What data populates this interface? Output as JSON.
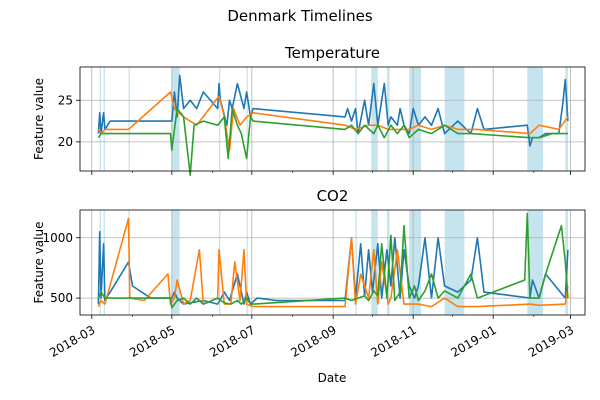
{
  "figure": {
    "title": "Denmark Timelines",
    "xlabel": "Date"
  },
  "colors": {
    "s1": "#1f77b4",
    "s2": "#ff7f0e",
    "s3": "#2ca02c",
    "band": "#add8e6"
  },
  "x_tick_labels": [
    "2018-03",
    "2018-05",
    "2018-07",
    "2018-09",
    "2018-11",
    "2019-01",
    "2019-03"
  ],
  "chart_data": [
    {
      "type": "line",
      "title": "Temperature",
      "ylabel": "Feature value",
      "xlim": [
        "2018-02-20",
        "2019-03-12"
      ],
      "ylim": [
        16.5,
        29
      ],
      "yticks": [
        20,
        25
      ],
      "grid": true,
      "shaded_periods": [
        [
          "2018-03-07",
          "2018-03-08"
        ],
        [
          "2018-03-10",
          "2018-03-11"
        ],
        [
          "2018-03-29",
          "2018-03-30"
        ],
        [
          "2018-05-01",
          "2018-05-07"
        ],
        [
          "2018-06-06",
          "2018-06-07"
        ],
        [
          "2018-06-27",
          "2018-06-28"
        ],
        [
          "2018-09-18",
          "2018-09-19"
        ],
        [
          "2018-09-30",
          "2018-10-05"
        ],
        [
          "2018-10-12",
          "2018-10-14"
        ],
        [
          "2018-10-29",
          "2018-11-07"
        ],
        [
          "2018-11-25",
          "2018-12-10"
        ],
        [
          "2019-01-27",
          "2019-02-08"
        ],
        [
          "2019-02-25",
          "2019-02-27"
        ]
      ],
      "series": [
        {
          "x": [
            "2018-03-06",
            "2018-03-07",
            "2018-03-08",
            "2018-03-10",
            "2018-03-11",
            "2018-03-15",
            "2018-03-29",
            "2018-03-30",
            "2018-05-01",
            "2018-05-03",
            "2018-05-05",
            "2018-05-07",
            "2018-05-10",
            "2018-05-15",
            "2018-05-20",
            "2018-05-25",
            "2018-06-05",
            "2018-06-06",
            "2018-06-07",
            "2018-06-12",
            "2018-06-14",
            "2018-06-16",
            "2018-06-20",
            "2018-06-25",
            "2018-06-27",
            "2018-06-28",
            "2018-06-30",
            "2018-07-02",
            "2018-09-10",
            "2018-09-12",
            "2018-09-15",
            "2018-09-18",
            "2018-09-20",
            "2018-09-25",
            "2018-09-28",
            "2018-10-02",
            "2018-10-05",
            "2018-10-10",
            "2018-10-13",
            "2018-10-15",
            "2018-10-20",
            "2018-10-22",
            "2018-10-25",
            "2018-10-29",
            "2018-11-01",
            "2018-11-05",
            "2018-11-10",
            "2018-11-15",
            "2018-11-20",
            "2018-11-25",
            "2018-12-05",
            "2018-12-15",
            "2018-12-20",
            "2018-12-25",
            "2019-01-27",
            "2019-01-29",
            "2019-01-31",
            "2019-02-05",
            "2019-02-10",
            "2019-02-20",
            "2019-02-23",
            "2019-02-25",
            "2019-02-27"
          ],
          "y": [
            21,
            23.5,
            21,
            23.5,
            21.5,
            22.5,
            22.5,
            22.5,
            22.5,
            26,
            23,
            28,
            24,
            25,
            24,
            26,
            24,
            27,
            25,
            22,
            25,
            24,
            27,
            24,
            26,
            25,
            23,
            24,
            23,
            24,
            22.5,
            24,
            21,
            25,
            22,
            27,
            22,
            27,
            22,
            23,
            22,
            24,
            22,
            21,
            24,
            22,
            23,
            22,
            24,
            21,
            22.5,
            21,
            24,
            21.5,
            22,
            19.5,
            20.5,
            20.5,
            21,
            21,
            24.5,
            27.5,
            22.5
          ]
        },
        {
          "x": [
            "2018-03-06",
            "2018-03-08",
            "2018-03-11",
            "2018-03-29",
            "2018-04-30",
            "2018-05-03",
            "2018-05-10",
            "2018-05-20",
            "2018-06-06",
            "2018-06-10",
            "2018-06-14",
            "2018-06-17",
            "2018-06-22",
            "2018-06-27",
            "2018-07-02",
            "2018-09-10",
            "2018-09-18",
            "2018-09-28",
            "2018-10-05",
            "2018-10-13",
            "2018-10-20",
            "2018-10-29",
            "2018-11-05",
            "2018-11-15",
            "2018-11-25",
            "2018-12-05",
            "2018-12-20",
            "2019-01-29",
            "2019-02-05",
            "2019-02-20",
            "2019-02-27"
          ],
          "y": [
            21.5,
            21,
            21.5,
            21.5,
            26,
            24,
            23,
            22,
            25.5,
            23,
            19,
            24,
            22,
            23,
            23.5,
            22,
            21.5,
            22,
            22,
            21.5,
            21.5,
            21.5,
            22,
            21.5,
            22,
            21.5,
            21.5,
            21,
            22,
            21.5,
            23
          ]
        },
        {
          "x": [
            "2018-03-06",
            "2018-03-08",
            "2018-03-11",
            "2018-03-29",
            "2018-04-30",
            "2018-05-01",
            "2018-05-05",
            "2018-05-10",
            "2018-05-15",
            "2018-05-18",
            "2018-05-25",
            "2018-06-05",
            "2018-06-10",
            "2018-06-13",
            "2018-06-16",
            "2018-06-20",
            "2018-06-23",
            "2018-06-27",
            "2018-06-30",
            "2018-07-02",
            "2018-09-10",
            "2018-09-15",
            "2018-09-20",
            "2018-09-25",
            "2018-10-02",
            "2018-10-05",
            "2018-10-10",
            "2018-10-15",
            "2018-10-20",
            "2018-10-25",
            "2018-10-29",
            "2018-11-05",
            "2018-11-15",
            "2018-11-25",
            "2018-12-05",
            "2018-12-15",
            "2019-01-29",
            "2019-02-05",
            "2019-02-15",
            "2019-02-25",
            "2019-02-27"
          ],
          "y": [
            20.5,
            21,
            21,
            21,
            21,
            19,
            24,
            23,
            16,
            22,
            22.5,
            22,
            23,
            18,
            24,
            22,
            21,
            18,
            23,
            22.5,
            21.5,
            22,
            21,
            22,
            21,
            22,
            20.5,
            22,
            21,
            22,
            20.5,
            21.5,
            21,
            22,
            21,
            21,
            20.5,
            20.5,
            21,
            21,
            21
          ]
        }
      ]
    },
    {
      "type": "line",
      "title": "CO2",
      "ylabel": "Feature value",
      "xlim": [
        "2018-02-20",
        "2019-03-12"
      ],
      "ylim": [
        360,
        1230
      ],
      "yticks": [
        500,
        1000
      ],
      "grid": true,
      "shaded_periods": [
        [
          "2018-03-07",
          "2018-03-08"
        ],
        [
          "2018-03-10",
          "2018-03-11"
        ],
        [
          "2018-03-29",
          "2018-03-30"
        ],
        [
          "2018-05-01",
          "2018-05-07"
        ],
        [
          "2018-06-06",
          "2018-06-07"
        ],
        [
          "2018-06-27",
          "2018-06-28"
        ],
        [
          "2018-09-18",
          "2018-09-19"
        ],
        [
          "2018-09-30",
          "2018-10-05"
        ],
        [
          "2018-10-12",
          "2018-10-14"
        ],
        [
          "2018-10-29",
          "2018-11-07"
        ],
        [
          "2018-11-25",
          "2018-12-10"
        ],
        [
          "2019-01-27",
          "2019-02-08"
        ],
        [
          "2019-02-25",
          "2019-02-27"
        ]
      ],
      "series": [
        {
          "x": [
            "2018-03-06",
            "2018-03-07",
            "2018-03-08",
            "2018-03-10",
            "2018-03-11",
            "2018-03-15",
            "2018-03-29",
            "2018-04-01",
            "2018-04-15",
            "2018-05-01",
            "2018-05-03",
            "2018-05-05",
            "2018-05-10",
            "2018-05-25",
            "2018-06-05",
            "2018-06-10",
            "2018-06-14",
            "2018-06-20",
            "2018-06-25",
            "2018-06-27",
            "2018-06-30",
            "2018-07-05",
            "2018-07-20",
            "2018-09-10",
            "2018-09-15",
            "2018-09-18",
            "2018-09-22",
            "2018-09-25",
            "2018-09-28",
            "2018-10-01",
            "2018-10-05",
            "2018-10-08",
            "2018-10-12",
            "2018-10-15",
            "2018-10-18",
            "2018-10-22",
            "2018-10-25",
            "2018-10-29",
            "2018-11-02",
            "2018-11-05",
            "2018-11-10",
            "2018-11-15",
            "2018-11-20",
            "2018-11-25",
            "2018-12-05",
            "2018-12-15",
            "2018-12-20",
            "2018-12-25",
            "2019-01-29",
            "2019-01-31",
            "2019-02-05",
            "2019-02-10",
            "2019-02-25",
            "2019-02-27"
          ],
          "y": [
            450,
            1050,
            500,
            950,
            480,
            550,
            800,
            600,
            500,
            500,
            550,
            500,
            450,
            480,
            450,
            550,
            480,
            700,
            450,
            550,
            450,
            500,
            480,
            480,
            1000,
            500,
            950,
            520,
            900,
            550,
            950,
            500,
            900,
            600,
            1000,
            500,
            900,
            600,
            500,
            600,
            1000,
            500,
            1000,
            600,
            550,
            650,
            1000,
            550,
            500,
            650,
            500,
            700,
            500,
            900
          ]
        },
        {
          "x": [
            "2018-03-06",
            "2018-03-08",
            "2018-03-11",
            "2018-03-29",
            "2018-03-30",
            "2018-04-10",
            "2018-04-28",
            "2018-04-30",
            "2018-05-03",
            "2018-05-05",
            "2018-05-10",
            "2018-05-15",
            "2018-05-22",
            "2018-05-25",
            "2018-06-05",
            "2018-06-06",
            "2018-06-10",
            "2018-06-15",
            "2018-06-18",
            "2018-06-22",
            "2018-06-25",
            "2018-06-27",
            "2018-07-02",
            "2018-09-10",
            "2018-09-15",
            "2018-09-18",
            "2018-09-22",
            "2018-09-28",
            "2018-10-02",
            "2018-10-05",
            "2018-10-08",
            "2018-10-13",
            "2018-10-15",
            "2018-10-20",
            "2018-10-25",
            "2018-10-29",
            "2018-11-05",
            "2018-11-15",
            "2018-11-25",
            "2018-12-05",
            "2018-12-20",
            "2019-01-29",
            "2019-02-05",
            "2019-02-25",
            "2019-02-27"
          ],
          "y": [
            430,
            480,
            450,
            1160,
            500,
            480,
            700,
            450,
            500,
            650,
            450,
            480,
            900,
            450,
            500,
            900,
            450,
            450,
            800,
            480,
            900,
            450,
            430,
            430,
            1000,
            450,
            700,
            500,
            900,
            450,
            800,
            450,
            500,
            900,
            450,
            450,
            450,
            430,
            500,
            430,
            430,
            450,
            440,
            450,
            600
          ]
        },
        {
          "x": [
            "2018-03-06",
            "2018-03-08",
            "2018-03-11",
            "2018-03-29",
            "2018-04-30",
            "2018-05-01",
            "2018-05-05",
            "2018-05-10",
            "2018-05-15",
            "2018-05-20",
            "2018-05-25",
            "2018-06-05",
            "2018-06-10",
            "2018-06-15",
            "2018-06-20",
            "2018-06-23",
            "2018-06-27",
            "2018-06-30",
            "2018-07-02",
            "2018-09-10",
            "2018-09-15",
            "2018-09-20",
            "2018-09-25",
            "2018-09-28",
            "2018-10-02",
            "2018-10-05",
            "2018-10-08",
            "2018-10-12",
            "2018-10-15",
            "2018-10-18",
            "2018-10-22",
            "2018-10-25",
            "2018-10-29",
            "2018-11-02",
            "2018-11-05",
            "2018-11-10",
            "2018-11-15",
            "2018-11-20",
            "2018-11-25",
            "2018-12-05",
            "2018-12-15",
            "2018-12-20",
            "2019-01-25",
            "2019-01-27",
            "2019-01-29",
            "2019-02-05",
            "2019-02-10",
            "2019-02-22",
            "2019-02-25",
            "2019-02-27"
          ],
          "y": [
            500,
            550,
            500,
            500,
            500,
            420,
            480,
            500,
            450,
            500,
            450,
            500,
            460,
            450,
            480,
            450,
            500,
            450,
            450,
            500,
            480,
            500,
            520,
            480,
            560,
            520,
            950,
            500,
            1020,
            480,
            550,
            1100,
            500,
            600,
            480,
            560,
            700,
            500,
            560,
            500,
            700,
            500,
            650,
            1200,
            500,
            500,
            700,
            1100,
            800,
            500
          ]
        }
      ]
    }
  ]
}
